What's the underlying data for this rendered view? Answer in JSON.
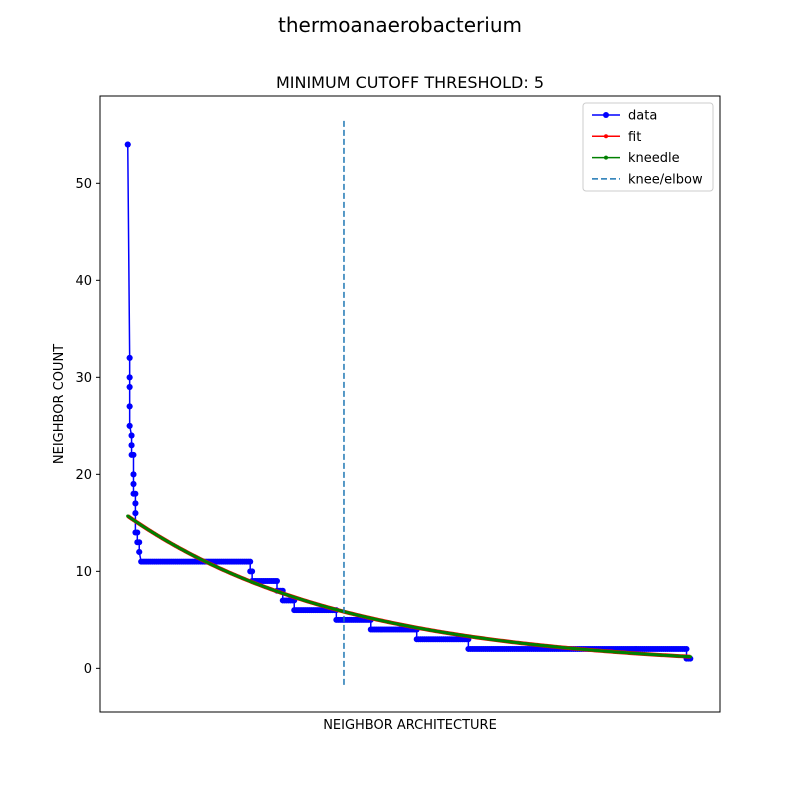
{
  "chart_data": {
    "type": "line",
    "suptitle": "thermoanaerobacterium",
    "title": "MINIMUM CUTOFF THRESHOLD: 5",
    "xlabel": "NEIGHBOR ARCHITECTURE",
    "ylabel": "NEIGHBOR COUNT",
    "xlim": [
      -14.5,
      309.5
    ],
    "ylim": [
      -4.5,
      59.0
    ],
    "yticks": [
      0,
      10,
      20,
      30,
      40,
      50
    ],
    "xticks_shown": false,
    "legend_position": "top-right",
    "knee_x": 113,
    "knee_line_y_range": [
      -1.7,
      56.7
    ],
    "data_steps": [
      {
        "x_start": 0,
        "x_end": 0,
        "y": 54
      },
      {
        "x_start": 1,
        "x_end": 1,
        "y": 32
      },
      {
        "x_start": 1,
        "x_end": 1,
        "y": 30
      },
      {
        "x_start": 1,
        "x_end": 1,
        "y": 29
      },
      {
        "x_start": 1,
        "x_end": 1,
        "y": 27
      },
      {
        "x_start": 1,
        "x_end": 1,
        "y": 25
      },
      {
        "x_start": 2,
        "x_end": 2,
        "y": 24
      },
      {
        "x_start": 2,
        "x_end": 2,
        "y": 23
      },
      {
        "x_start": 2,
        "x_end": 3,
        "y": 22
      },
      {
        "x_start": 3,
        "x_end": 3,
        "y": 20
      },
      {
        "x_start": 3,
        "x_end": 3,
        "y": 19
      },
      {
        "x_start": 3,
        "x_end": 4,
        "y": 18
      },
      {
        "x_start": 4,
        "x_end": 4,
        "y": 17
      },
      {
        "x_start": 4,
        "x_end": 4,
        "y": 16
      },
      {
        "x_start": 4,
        "x_end": 5,
        "y": 14
      },
      {
        "x_start": 5,
        "x_end": 6,
        "y": 13
      },
      {
        "x_start": 6,
        "x_end": 6,
        "y": 12
      },
      {
        "x_start": 7,
        "x_end": 64,
        "y": 11
      },
      {
        "x_start": 64,
        "x_end": 65,
        "y": 10
      },
      {
        "x_start": 65,
        "x_end": 78,
        "y": 9
      },
      {
        "x_start": 78,
        "x_end": 81,
        "y": 8
      },
      {
        "x_start": 81,
        "x_end": 87,
        "y": 7
      },
      {
        "x_start": 87,
        "x_end": 109,
        "y": 6
      },
      {
        "x_start": 109,
        "x_end": 127,
        "y": 5
      },
      {
        "x_start": 127,
        "x_end": 151,
        "y": 4
      },
      {
        "x_start": 151,
        "x_end": 178,
        "y": 3
      },
      {
        "x_start": 178,
        "x_end": 292,
        "y": 2
      },
      {
        "x_start": 292,
        "x_end": 294,
        "y": 1
      }
    ],
    "series": [
      {
        "name": "data",
        "color": "#0000ff",
        "marker": "circle"
      },
      {
        "name": "fit",
        "color": "#ff0000",
        "marker": "point"
      },
      {
        "name": "kneedle",
        "color": "#008000",
        "marker": "point"
      },
      {
        "name": "knee/elbow",
        "color": "#1f77b4",
        "style": "dashed"
      }
    ],
    "fit_curve": {
      "x_start": 0,
      "x_end": 294,
      "y_start": 15.7,
      "y_end": 1.2,
      "note_shape": "exponential decay"
    }
  }
}
